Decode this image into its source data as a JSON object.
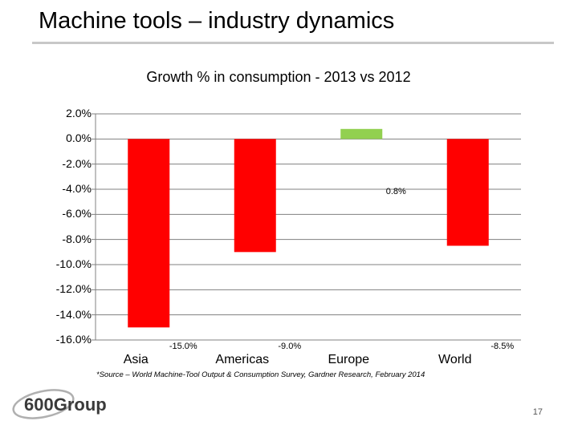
{
  "slide": {
    "title": "Machine tools – industry dynamics",
    "source_note": "*Source – World Machine-Tool Output & Consumption Survey, Gardner Research, February 2014",
    "logo_text": "600Group",
    "page_number": "17"
  },
  "colors": {
    "negative_bar": "#ff0000",
    "positive_bar": "#92d050",
    "grid": "#808080",
    "title_rule": "#c8c8c8"
  },
  "chart_data": {
    "type": "bar",
    "title": "Growth % in consumption - 2013 vs 2012",
    "categories": [
      "Asia",
      "Americas",
      "Europe",
      "World"
    ],
    "values": [
      -15.0,
      -9.0,
      0.8,
      -8.5
    ],
    "data_labels": [
      "-15.0%",
      "-9.0%",
      "0.8%",
      "-8.5%"
    ],
    "y_ticks": [
      "2.0%",
      "0.0%",
      "-2.0%",
      "-4.0%",
      "-6.0%",
      "-8.0%",
      "-10.0%",
      "-12.0%",
      "-14.0%",
      "-16.0%"
    ],
    "ylim": [
      -16,
      2
    ],
    "grid": true,
    "legend": "none",
    "xlabel": "",
    "ylabel": ""
  }
}
